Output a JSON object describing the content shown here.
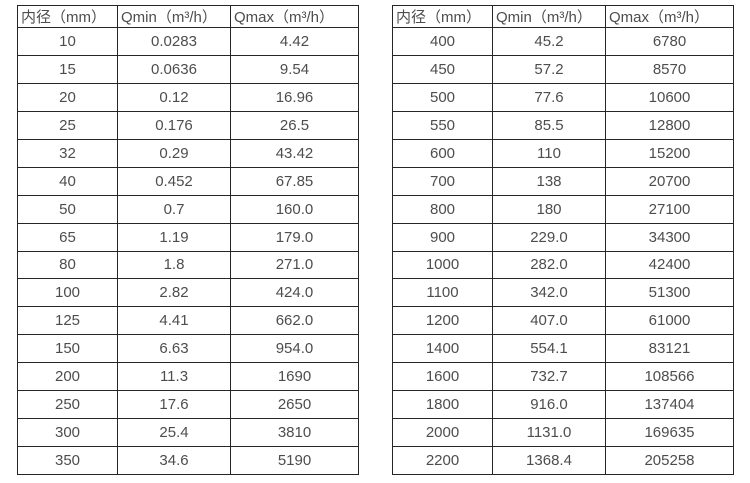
{
  "page": {
    "background_color": "#ffffff",
    "border_color": "#262626",
    "text_color": "#4d4d4d"
  },
  "tables": [
    {
      "name": "flow-spec-table-small-diameters",
      "headers": [
        "内径（mm）",
        "Qmin（m³/h）",
        "Qmax（m³/h）"
      ],
      "rows": [
        [
          "10",
          "0.0283",
          "4.42"
        ],
        [
          "15",
          "0.0636",
          "9.54"
        ],
        [
          "20",
          "0.12",
          "16.96"
        ],
        [
          "25",
          "0.176",
          "26.5"
        ],
        [
          "32",
          "0.29",
          "43.42"
        ],
        [
          "40",
          "0.452",
          "67.85"
        ],
        [
          "50",
          "0.7",
          "160.0"
        ],
        [
          "65",
          "1.19",
          "179.0"
        ],
        [
          "80",
          "1.8",
          "271.0"
        ],
        [
          "100",
          "2.82",
          "424.0"
        ],
        [
          "125",
          "4.41",
          "662.0"
        ],
        [
          "150",
          "6.63",
          "954.0"
        ],
        [
          "200",
          "11.3",
          "1690"
        ],
        [
          "250",
          "17.6",
          "2650"
        ],
        [
          "300",
          "25.4",
          "3810"
        ],
        [
          "350",
          "34.6",
          "5190"
        ]
      ]
    },
    {
      "name": "flow-spec-table-large-diameters",
      "headers": [
        "内径（mm）",
        "Qmin（m³/h）",
        "Qmax（m³/h）"
      ],
      "rows": [
        [
          "400",
          "45.2",
          "6780"
        ],
        [
          "450",
          "57.2",
          "8570"
        ],
        [
          "500",
          "77.6",
          "10600"
        ],
        [
          "550",
          "85.5",
          "12800"
        ],
        [
          "600",
          "110",
          "15200"
        ],
        [
          "700",
          "138",
          "20700"
        ],
        [
          "800",
          "180",
          "27100"
        ],
        [
          "900",
          "229.0",
          "34300"
        ],
        [
          "1000",
          "282.0",
          "42400"
        ],
        [
          "1100",
          "342.0",
          "51300"
        ],
        [
          "1200",
          "407.0",
          "61000"
        ],
        [
          "1400",
          "554.1",
          "83121"
        ],
        [
          "1600",
          "732.7",
          "108566"
        ],
        [
          "1800",
          "916.0",
          "137404"
        ],
        [
          "2000",
          "1131.0",
          "169635"
        ],
        [
          "2200",
          "1368.4",
          "205258"
        ]
      ]
    }
  ]
}
